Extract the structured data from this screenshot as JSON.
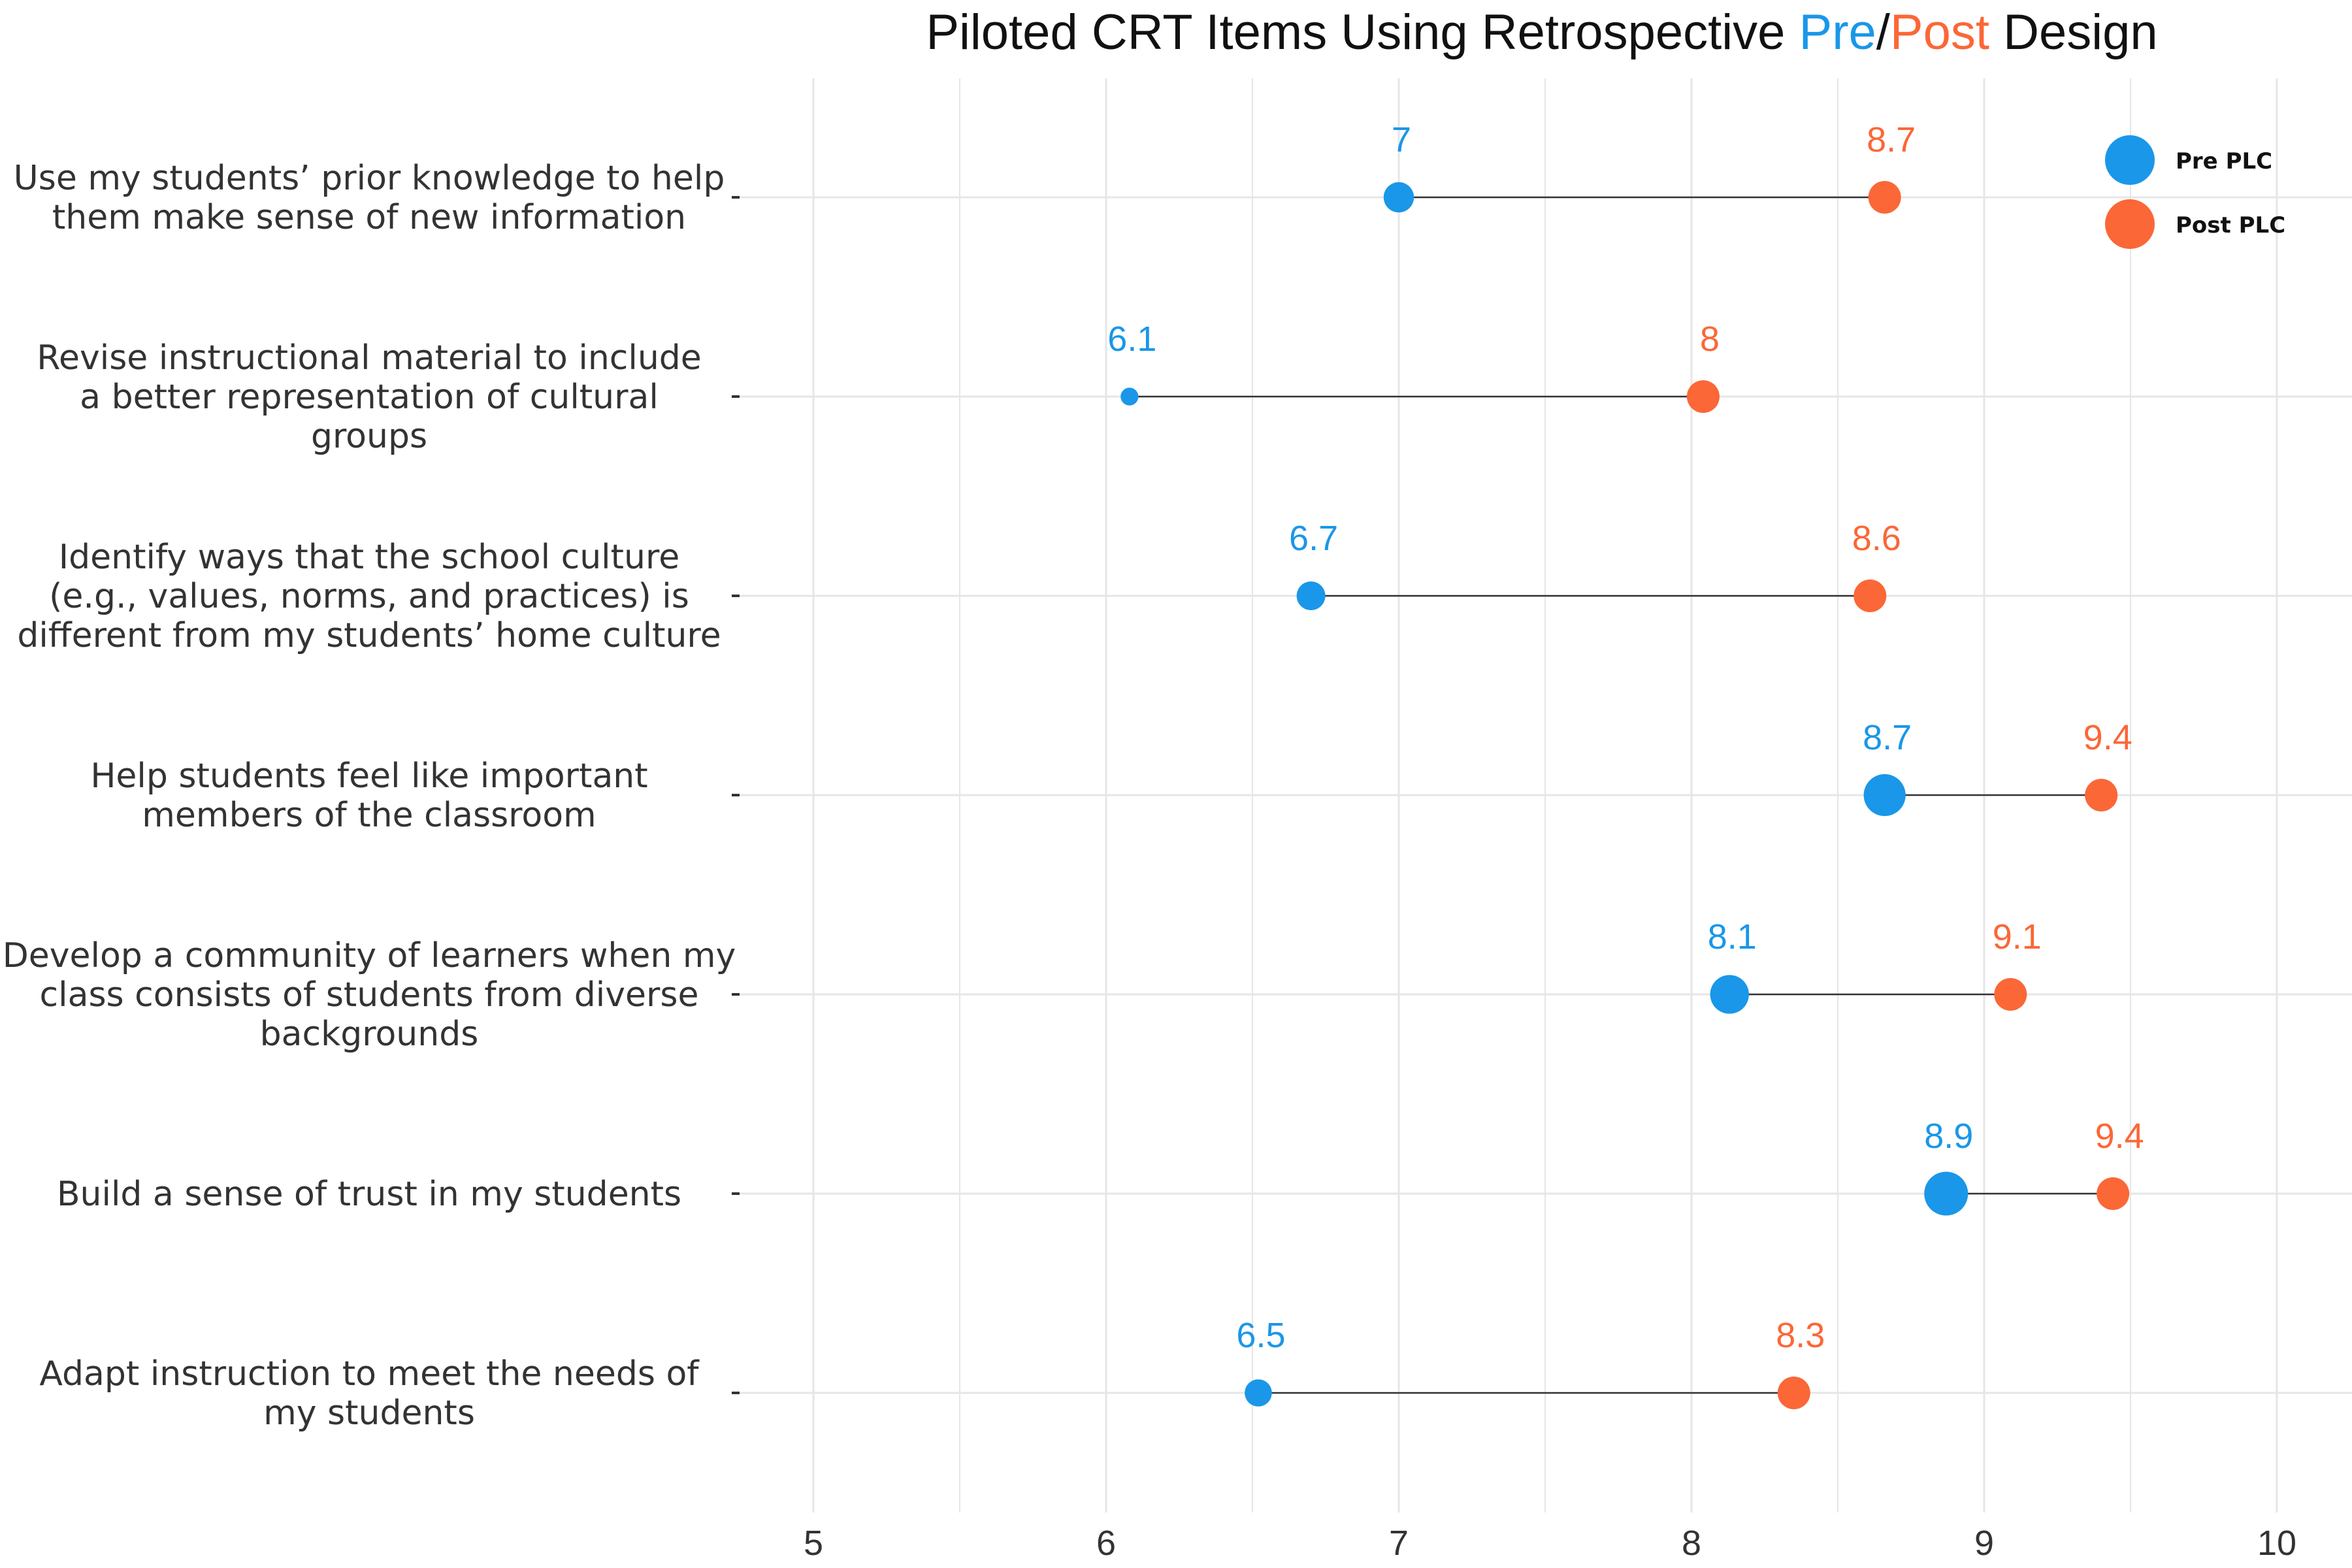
{
  "title": {
    "before": "Piloted CRT Items Using Retrospective ",
    "pre": "Pre",
    "sep": "/",
    "post": "Post",
    "after": " Design"
  },
  "colors": {
    "pre": "#1A97E8",
    "post": "#FB6737",
    "text": "#333333",
    "grid": "#E6E6E6",
    "arrow": "#333333"
  },
  "legend": {
    "position": "top-right",
    "items": [
      {
        "label": "Pre PLC",
        "color": "#1A97E8"
      },
      {
        "label": "Post PLC",
        "color": "#FB6737"
      }
    ]
  },
  "chart_data": {
    "type": "dumbbell",
    "xlim": [
      5,
      10
    ],
    "xticks": [
      "5",
      "6",
      "7",
      "8",
      "9",
      "10"
    ],
    "grid": true,
    "items": [
      {
        "label": [
          "Use my students’ prior knowledge to help",
          "them make sense of new information"
        ],
        "pre": 7.0,
        "post": 8.66,
        "pre_label": "7",
        "post_label": "8.7",
        "size": 0.55
      },
      {
        "label": [
          "Revise instructional material to include",
          "a better representation of cultural",
          "groups"
        ],
        "pre": 6.08,
        "post": 8.04,
        "pre_label": "6.1",
        "post_label": "8",
        "size": 0.15
      },
      {
        "label": [
          "Identify ways that the school culture",
          "(e.g., values, norms, and practices) is",
          "different from my students’ home culture"
        ],
        "pre": 6.7,
        "post": 8.61,
        "pre_label": "6.7",
        "post_label": "8.6",
        "size": 0.5
      },
      {
        "label": [
          "Help students feel like important",
          "members of the classroom"
        ],
        "pre": 8.66,
        "post": 9.4,
        "pre_label": "8.7",
        "post_label": "9.4",
        "size": 0.92
      },
      {
        "label": [
          "Develop a community of learners when my",
          "class consists of students from diverse",
          "backgrounds"
        ],
        "pre": 8.13,
        "post": 9.09,
        "pre_label": "8.1",
        "post_label": "9.1",
        "size": 0.82
      },
      {
        "label": [
          "Build a sense of trust in my students"
        ],
        "pre": 8.87,
        "post": 9.44,
        "pre_label": "8.9",
        "post_label": "9.4",
        "size": 0.98
      },
      {
        "label": [
          "Adapt instruction to meet the needs of",
          "my students"
        ],
        "pre": 6.52,
        "post": 8.35,
        "pre_label": "6.5",
        "post_label": "8.3",
        "size": 0.45
      }
    ]
  }
}
